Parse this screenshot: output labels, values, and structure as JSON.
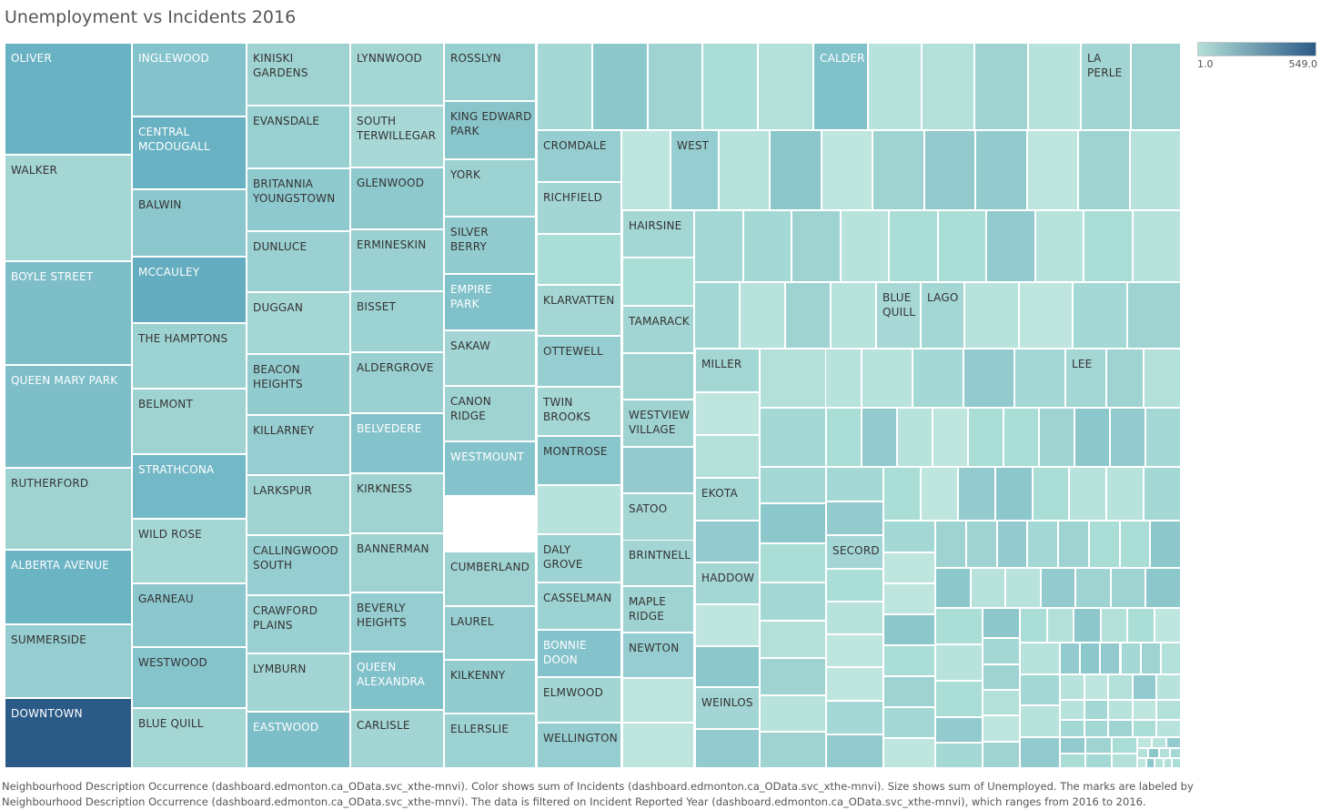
{
  "title": "Unemployment vs Incidents 2016",
  "caption": {
    "line1": "Neighbourhood Description Occurrence (dashboard.edmonton.ca_OData.svc_xthe-mnvi).  Color shows sum of Incidents (dashboard.edmonton.ca_OData.svc_xthe-mnvi).  Size shows sum of Unemployed.  The marks are labeled by",
    "line2": "Neighbourhood Description Occurrence (dashboard.edmonton.ca_OData.svc_xthe-mnvi). The data is filtered on Incident Reported Year (dashboard.edmonton.ca_OData.svc_xthe-mnvi), which ranges from 2016 to 2016."
  },
  "legend": {
    "min_label": "1.0",
    "max_label": "549.0",
    "color_low": "#b3dfd8",
    "color_high": "#2c5a87"
  },
  "chart_data": {
    "type": "treemap",
    "size_measure": "sum of Unemployed",
    "color_measure": "sum of Incidents",
    "color_range": [
      1.0,
      549.0
    ],
    "nodes": [
      {
        "label": "OLIVER",
        "incidents": 300
      },
      {
        "label": "WALKER",
        "incidents": 60
      },
      {
        "label": "BOYLE STREET",
        "incidents": 220
      },
      {
        "label": "QUEEN MARY PARK",
        "incidents": 220
      },
      {
        "label": "RUTHERFORD",
        "incidents": 80
      },
      {
        "label": "ALBERTA AVENUE",
        "incidents": 290
      },
      {
        "label": "SUMMERSIDE",
        "incidents": 120
      },
      {
        "label": "DOWNTOWN",
        "incidents": 549
      },
      {
        "label": "INGLEWOOD",
        "incidents": 190
      },
      {
        "label": "CENTRAL MCDOUGALL",
        "incidents": 300
      },
      {
        "label": "BALWIN",
        "incidents": 160
      },
      {
        "label": "MCCAULEY",
        "incidents": 320
      },
      {
        "label": "THE HAMPTONS",
        "incidents": 90
      },
      {
        "label": "BELMONT",
        "incidents": 80
      },
      {
        "label": "STRATHCONA",
        "incidents": 260
      },
      {
        "label": "WILD ROSE",
        "incidents": 60
      },
      {
        "label": "GARNEAU",
        "incidents": 160
      },
      {
        "label": "WESTWOOD",
        "incidents": 180
      },
      {
        "label": "BLUE QUILL",
        "incidents": 60
      },
      {
        "label": "KINISKI GARDENS",
        "incidents": 80
      },
      {
        "label": "EVANSDALE",
        "incidents": 110
      },
      {
        "label": "BRITANNIA YOUNGSTOWN",
        "incidents": 150
      },
      {
        "label": "DUNLUCE",
        "incidents": 100
      },
      {
        "label": "DUGGAN",
        "incidents": 60
      },
      {
        "label": "BEACON HEIGHTS",
        "incidents": 130
      },
      {
        "label": "KILLARNEY",
        "incidents": 120
      },
      {
        "label": "LARKSPUR",
        "incidents": 80
      },
      {
        "label": "CALLINGWOOD SOUTH",
        "incidents": 120
      },
      {
        "label": "CRAWFORD PLAINS",
        "incidents": 100
      },
      {
        "label": "LYMBURN",
        "incidents": 70
      },
      {
        "label": "EASTWOOD",
        "incidents": 220
      },
      {
        "label": "LYNNWOOD",
        "incidents": 60
      },
      {
        "label": "SOUTH TERWILLEGAR",
        "incidents": 50
      },
      {
        "label": "GLENWOOD",
        "incidents": 150
      },
      {
        "label": "ERMINESKIN",
        "incidents": 100
      },
      {
        "label": "BISSET",
        "incidents": 90
      },
      {
        "label": "ALDERGROVE",
        "incidents": 100
      },
      {
        "label": "BELVEDERE",
        "incidents": 190
      },
      {
        "label": "KIRKNESS",
        "incidents": 80
      },
      {
        "label": "BANNERMAN",
        "incidents": 80
      },
      {
        "label": "BEVERLY HEIGHTS",
        "incidents": 120
      },
      {
        "label": "QUEEN ALEXANDRA",
        "incidents": 200
      },
      {
        "label": "CARLISLE",
        "incidents": 70
      },
      {
        "label": "ROSSLYN",
        "incidents": 110
      },
      {
        "label": "KING EDWARD PARK",
        "incidents": 170
      },
      {
        "label": "YORK",
        "incidents": 90
      },
      {
        "label": "SILVER BERRY",
        "incidents": 130
      },
      {
        "label": "EMPIRE PARK",
        "incidents": 200
      },
      {
        "label": "SAKAW",
        "incidents": 70
      },
      {
        "label": "CANON RIDGE",
        "incidents": 80
      },
      {
        "label": "WESTMOUNT",
        "incidents": 190
      },
      {
        "label": "CUMBERLAND",
        "incidents": 80
      },
      {
        "label": "LAUREL",
        "incidents": 120
      },
      {
        "label": "KILKENNY",
        "incidents": 130
      },
      {
        "label": "ELLERSLIE",
        "incidents": 90
      },
      {
        "label": "CROMDALE",
        "incidents": 120
      },
      {
        "label": "RICHFIELD",
        "incidents": 70
      },
      {
        "label": "KLARVATTEN",
        "incidents": 60
      },
      {
        "label": "OTTEWELL",
        "incidents": 120
      },
      {
        "label": "TWIN BROOKS",
        "incidents": 60
      },
      {
        "label": "MONTROSE",
        "incidents": 170
      },
      {
        "label": "DALY GROVE",
        "incidents": 90
      },
      {
        "label": "CASSELMAN",
        "incidents": 90
      },
      {
        "label": "BONNIE DOON",
        "incidents": 190
      },
      {
        "label": "ELMWOOD",
        "incidents": 70
      },
      {
        "label": "WELLINGTON",
        "incidents": 120
      },
      {
        "label": "WEST",
        "incidents": 120
      },
      {
        "label": "HAIRSINE",
        "incidents": 60
      },
      {
        "label": "TAMARACK",
        "incidents": 70
      },
      {
        "label": "WESTVIEW VILLAGE",
        "incidents": 80
      },
      {
        "label": "SATOO",
        "incidents": 60
      },
      {
        "label": "BRINTNELL",
        "incidents": 70
      },
      {
        "label": "MAPLE RIDGE",
        "incidents": 80
      },
      {
        "label": "NEWTON",
        "incidents": 120
      },
      {
        "label": "CALDER",
        "incidents": 200
      },
      {
        "label": "LA PERLE",
        "incidents": 70
      },
      {
        "label": "MILLER",
        "incidents": 60
      },
      {
        "label": "EKOTA",
        "incidents": 60
      },
      {
        "label": "HADDOW",
        "incidents": 60
      },
      {
        "label": "WEINLOS",
        "incidents": 70
      },
      {
        "label": "BLUE QUILL",
        "incidents": 50
      },
      {
        "label": "LAGO",
        "incidents": 60
      },
      {
        "label": "LEE",
        "incidents": 60
      },
      {
        "label": "SECORD",
        "incidents": 70
      }
    ]
  }
}
